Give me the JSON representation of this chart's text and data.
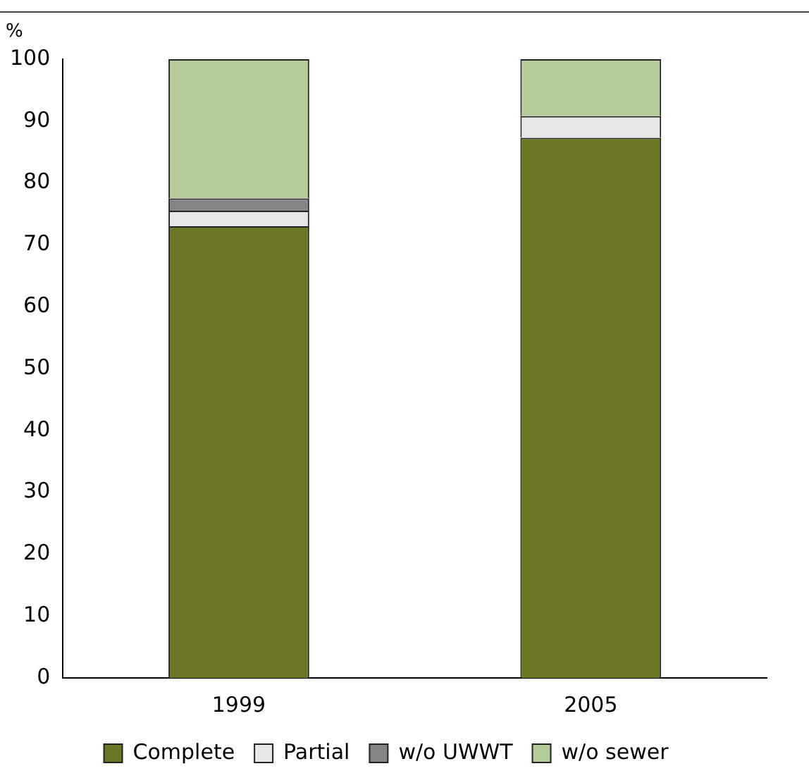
{
  "chart_data": {
    "type": "bar",
    "ylabel": "%",
    "categories": [
      "1999",
      "2005"
    ],
    "stacked": true,
    "series": [
      {
        "name": "Complete",
        "color": "#6b7522",
        "values": [
          73,
          87.3
        ]
      },
      {
        "name": "Partial",
        "color": "#e6e7e8",
        "values": [
          2.5,
          3.5
        ]
      },
      {
        "name": "w/o UWWT",
        "color": "#838486",
        "values": [
          2,
          0
        ]
      },
      {
        "name": "w/o sewer",
        "color": "#b4cc98",
        "values": [
          22.5,
          9.2
        ]
      }
    ],
    "ylim": [
      0,
      100
    ],
    "yticks": [
      0,
      10,
      20,
      30,
      40,
      50,
      60,
      70,
      80,
      90,
      100
    ],
    "grid": false,
    "legend": "bottom"
  }
}
